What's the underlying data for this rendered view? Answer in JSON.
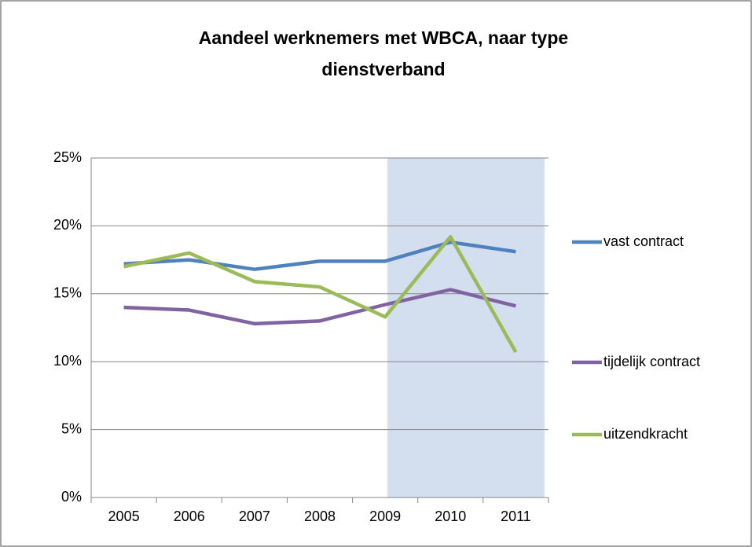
{
  "chart_data": {
    "type": "line",
    "title": [
      "Aandeel werknemers met WBCA, naar type",
      "dienstverband"
    ],
    "categories": [
      "2005",
      "2006",
      "2007",
      "2008",
      "2009",
      "2010",
      "2011"
    ],
    "series": [
      {
        "name": "vast contract",
        "color": "#4f81bd",
        "values": [
          17.2,
          17.5,
          16.8,
          17.4,
          17.4,
          18.8,
          18.1
        ]
      },
      {
        "name": "tijdelijk contract",
        "color": "#8064a2",
        "values": [
          14.0,
          13.8,
          12.8,
          13.0,
          14.2,
          15.3,
          14.1
        ]
      },
      {
        "name": "uitzendkracht",
        "color": "#9bbb59",
        "values": [
          17.0,
          18.0,
          15.9,
          15.5,
          13.3,
          19.2,
          10.7
        ]
      }
    ],
    "ylim": [
      0,
      25
    ],
    "yticks": [
      {
        "value": 0,
        "label": "0%"
      },
      {
        "value": 5,
        "label": "5%"
      },
      {
        "value": 10,
        "label": "10%"
      },
      {
        "value": 15,
        "label": "15%"
      },
      {
        "value": 20,
        "label": "20%"
      },
      {
        "value": 25,
        "label": "25%"
      }
    ],
    "grid": true,
    "legend": "right",
    "highlight": {
      "from": "2009",
      "to": "2011",
      "color": "#d3dfee"
    }
  }
}
